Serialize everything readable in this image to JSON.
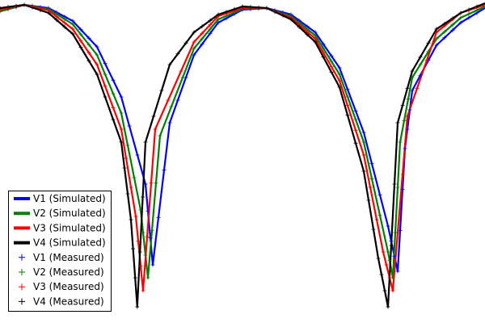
{
  "chart_data": {
    "type": "line",
    "title": "",
    "xlabel": "",
    "ylabel": "",
    "xlim": [
      0,
      1
    ],
    "ylim": [
      0,
      1
    ],
    "grid": false,
    "axes_visible": false,
    "legend_position": "lower-left",
    "series": [
      {
        "name": "V1 (Simulated)",
        "kind": "line",
        "color": "#0000ff",
        "x": [
          0.0,
          0.05,
          0.1,
          0.15,
          0.2,
          0.25,
          0.3,
          0.315,
          0.35,
          0.4,
          0.45,
          0.5,
          0.55,
          0.6,
          0.65,
          0.7,
          0.75,
          0.8,
          0.82,
          0.835,
          0.85,
          0.9,
          0.95,
          1.0
        ],
        "y": [
          0.965,
          0.985,
          0.975,
          0.935,
          0.855,
          0.7,
          0.43,
          0.18,
          0.62,
          0.83,
          0.93,
          0.97,
          0.975,
          0.955,
          0.9,
          0.79,
          0.59,
          0.3,
          0.16,
          0.54,
          0.72,
          0.86,
          0.93,
          0.975
        ]
      },
      {
        "name": "V2 (Simulated)",
        "kind": "line",
        "color": "#008000",
        "x": [
          0.0,
          0.05,
          0.1,
          0.15,
          0.2,
          0.25,
          0.29,
          0.305,
          0.33,
          0.4,
          0.45,
          0.5,
          0.55,
          0.6,
          0.65,
          0.7,
          0.75,
          0.8,
          0.81,
          0.825,
          0.85,
          0.9,
          0.95,
          1.0
        ],
        "y": [
          0.965,
          0.985,
          0.972,
          0.925,
          0.83,
          0.65,
          0.35,
          0.14,
          0.58,
          0.85,
          0.94,
          0.972,
          0.975,
          0.95,
          0.89,
          0.77,
          0.56,
          0.22,
          0.14,
          0.56,
          0.76,
          0.88,
          0.945,
          0.98
        ]
      },
      {
        "name": "V3 (Simulated)",
        "kind": "line",
        "color": "#ff0000",
        "x": [
          0.0,
          0.05,
          0.1,
          0.15,
          0.2,
          0.25,
          0.28,
          0.295,
          0.32,
          0.4,
          0.45,
          0.5,
          0.55,
          0.6,
          0.65,
          0.7,
          0.75,
          0.79,
          0.81,
          0.84,
          0.9,
          0.95,
          1.0
        ],
        "y": [
          0.97,
          0.985,
          0.968,
          0.91,
          0.8,
          0.6,
          0.33,
          0.1,
          0.6,
          0.87,
          0.95,
          0.975,
          0.975,
          0.945,
          0.88,
          0.75,
          0.52,
          0.22,
          0.1,
          0.64,
          0.9,
          0.96,
          0.985
        ]
      },
      {
        "name": "V4 (Simulated)",
        "kind": "line",
        "color": "#000000",
        "x": [
          0.0,
          0.05,
          0.1,
          0.15,
          0.2,
          0.25,
          0.27,
          0.283,
          0.3,
          0.35,
          0.4,
          0.45,
          0.5,
          0.55,
          0.6,
          0.65,
          0.7,
          0.75,
          0.78,
          0.8,
          0.82,
          0.85,
          0.9,
          0.95,
          1.0
        ],
        "y": [
          0.975,
          0.985,
          0.96,
          0.895,
          0.77,
          0.56,
          0.32,
          0.05,
          0.56,
          0.8,
          0.9,
          0.955,
          0.98,
          0.975,
          0.94,
          0.87,
          0.73,
          0.47,
          0.2,
          0.05,
          0.62,
          0.78,
          0.91,
          0.96,
          0.99
        ]
      },
      {
        "name": "V1 (Measured)",
        "kind": "marker",
        "marker": "+",
        "color": "#0000ff",
        "same_as": "V1 (Simulated)"
      },
      {
        "name": "V2 (Measured)",
        "kind": "marker",
        "marker": "+",
        "color": "#008000",
        "same_as": "V2 (Simulated)"
      },
      {
        "name": "V3 (Measured)",
        "kind": "marker",
        "marker": "+",
        "color": "#ff0000",
        "same_as": "V3 (Simulated)"
      },
      {
        "name": "V4 (Measured)",
        "kind": "marker",
        "marker": "+",
        "color": "#000000",
        "same_as": "V4 (Simulated)"
      }
    ]
  }
}
